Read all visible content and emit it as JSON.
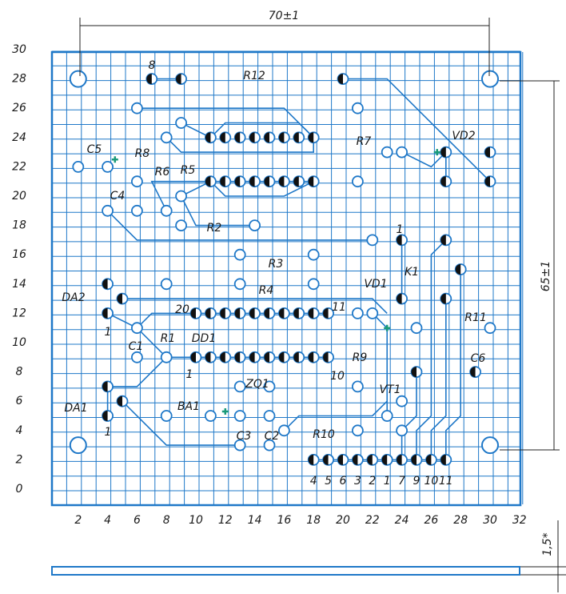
{
  "dimensions": {
    "width": "70±1",
    "height": "65±1",
    "thickness": "1,5*"
  },
  "axes": {
    "y_labels": [
      "0",
      "2",
      "4",
      "6",
      "8",
      "10",
      "12",
      "14",
      "16",
      "18",
      "20",
      "22",
      "24",
      "26",
      "28",
      "30"
    ],
    "x_labels": [
      "2",
      "4",
      "6",
      "8",
      "10",
      "12",
      "14",
      "16",
      "18",
      "20",
      "22",
      "24",
      "26",
      "28",
      "30",
      "32"
    ]
  },
  "components": [
    "R12",
    "8",
    "C5",
    "R8",
    "R7",
    "VD2",
    "R6",
    "R5",
    "C4",
    "R2",
    "1",
    "R3",
    "K1",
    "R4",
    "VD1",
    "DA2",
    "20",
    "11",
    "1",
    "C1",
    "R1",
    "DD1",
    "R11",
    "R9",
    "1",
    "10",
    "C6",
    "ZQ1",
    "VT1",
    "DA1",
    "BA1",
    "1",
    "C3",
    "C2",
    "R10"
  ],
  "connector_pins": [
    "4",
    "5",
    "6",
    "3",
    "2",
    "1",
    "7",
    "9",
    "10",
    "11"
  ]
}
